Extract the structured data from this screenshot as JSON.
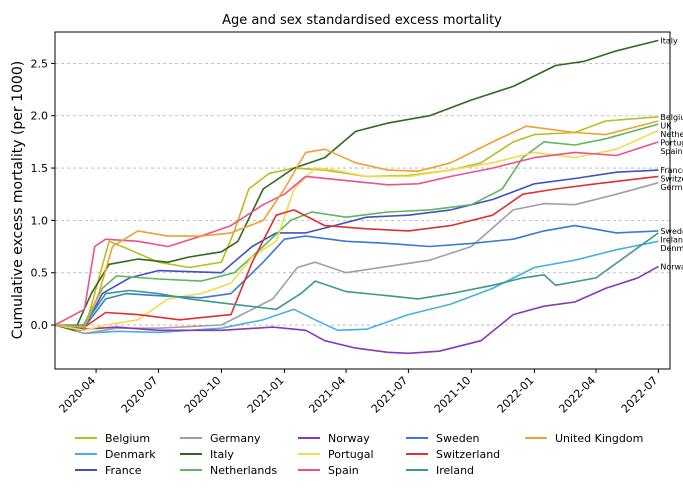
{
  "chart_data": {
    "type": "line",
    "title": "Age and sex standardised excess mortality",
    "xlabel": "",
    "ylabel": "Cumulative excess mortality (per 1000)",
    "ylim": [
      -0.42,
      2.8
    ],
    "xlim": [
      "2020-02-01",
      "2022-07-18"
    ],
    "yticks": [
      0.0,
      0.5,
      1.0,
      1.5,
      2.0,
      2.5
    ],
    "ytick_labels": [
      "0.0",
      "0.5",
      "1.0",
      "1.5",
      "2.0",
      "2.5"
    ],
    "xticks": [
      "2020-04-01",
      "2020-07-01",
      "2020-10-01",
      "2021-01-01",
      "2021-04-01",
      "2021-07-01",
      "2021-10-01",
      "2022-01-01",
      "2022-04-01",
      "2022-07-01"
    ],
    "xtick_labels": [
      "2020-04",
      "2020-07",
      "2020-10",
      "2021-01",
      "2021-04",
      "2021-07",
      "2021-10",
      "2022-01",
      "2022-04",
      "2022-07"
    ],
    "grid": "horizontal dashed",
    "legend": "bottom",
    "series": [
      {
        "name": "Belgium",
        "color": "#bcbd22",
        "end_label": "Belgium",
        "points": [
          [
            "2020-02-01",
            0
          ],
          [
            "2020-03-15",
            -0.05
          ],
          [
            "2020-04-01",
            0.35
          ],
          [
            "2020-04-20",
            0.8
          ],
          [
            "2020-05-20",
            0.72
          ],
          [
            "2020-07-01",
            0.6
          ],
          [
            "2020-08-15",
            0.55
          ],
          [
            "2020-10-01",
            0.6
          ],
          [
            "2020-10-20",
            0.9
          ],
          [
            "2020-11-10",
            1.3
          ],
          [
            "2020-12-10",
            1.45
          ],
          [
            "2021-01-15",
            1.5
          ],
          [
            "2021-03-01",
            1.48
          ],
          [
            "2021-05-01",
            1.42
          ],
          [
            "2021-07-01",
            1.43
          ],
          [
            "2021-09-01",
            1.48
          ],
          [
            "2021-10-15",
            1.55
          ],
          [
            "2021-12-01",
            1.75
          ],
          [
            "2022-01-01",
            1.82
          ],
          [
            "2022-03-01",
            1.84
          ],
          [
            "2022-04-15",
            1.95
          ],
          [
            "2022-07-01",
            1.99
          ]
        ]
      },
      {
        "name": "Denmark",
        "color": "#48b0e0",
        "end_label": "Denmark",
        "points": [
          [
            "2020-02-01",
            0
          ],
          [
            "2020-03-15",
            -0.08
          ],
          [
            "2020-05-01",
            -0.06
          ],
          [
            "2020-07-01",
            -0.07
          ],
          [
            "2020-10-01",
            -0.03
          ],
          [
            "2020-12-01",
            0.05
          ],
          [
            "2021-01-15",
            0.15
          ],
          [
            "2021-02-15",
            0.05
          ],
          [
            "2021-03-20",
            -0.05
          ],
          [
            "2021-05-01",
            -0.04
          ],
          [
            "2021-07-01",
            0.1
          ],
          [
            "2021-09-01",
            0.2
          ],
          [
            "2021-11-01",
            0.35
          ],
          [
            "2022-01-01",
            0.55
          ],
          [
            "2022-03-01",
            0.62
          ],
          [
            "2022-05-01",
            0.72
          ],
          [
            "2022-07-01",
            0.8
          ]
        ]
      },
      {
        "name": "France",
        "color": "#4050c0",
        "end_label": "France",
        "points": [
          [
            "2020-02-01",
            0
          ],
          [
            "2020-03-15",
            -0.02
          ],
          [
            "2020-04-10",
            0.3
          ],
          [
            "2020-05-20",
            0.45
          ],
          [
            "2020-07-01",
            0.52
          ],
          [
            "2020-10-01",
            0.5
          ],
          [
            "2020-11-15",
            0.75
          ],
          [
            "2020-12-20",
            0.88
          ],
          [
            "2021-02-01",
            0.88
          ],
          [
            "2021-03-15",
            0.95
          ],
          [
            "2021-05-01",
            1.03
          ],
          [
            "2021-07-01",
            1.05
          ],
          [
            "2021-09-01",
            1.1
          ],
          [
            "2021-11-01",
            1.2
          ],
          [
            "2022-01-01",
            1.35
          ],
          [
            "2022-03-01",
            1.4
          ],
          [
            "2022-05-01",
            1.46
          ],
          [
            "2022-07-01",
            1.48
          ]
        ]
      },
      {
        "name": "Germany",
        "color": "#a0a0a0",
        "end_label": "Germany",
        "points": [
          [
            "2020-02-01",
            0
          ],
          [
            "2020-03-15",
            -0.08
          ],
          [
            "2020-05-01",
            -0.03
          ],
          [
            "2020-07-01",
            -0.03
          ],
          [
            "2020-10-01",
            0.0
          ],
          [
            "2020-12-15",
            0.25
          ],
          [
            "2021-01-20",
            0.55
          ],
          [
            "2021-02-15",
            0.6
          ],
          [
            "2021-04-01",
            0.5
          ],
          [
            "2021-06-01",
            0.56
          ],
          [
            "2021-08-01",
            0.62
          ],
          [
            "2021-10-01",
            0.75
          ],
          [
            "2021-12-01",
            1.1
          ],
          [
            "2022-01-15",
            1.16
          ],
          [
            "2022-03-01",
            1.15
          ],
          [
            "2022-05-01",
            1.25
          ],
          [
            "2022-07-01",
            1.36
          ]
        ]
      },
      {
        "name": "Italy",
        "color": "#2d6a1e",
        "end_label": "Italy",
        "points": [
          [
            "2020-02-01",
            0
          ],
          [
            "2020-03-01",
            -0.05
          ],
          [
            "2020-03-25",
            0.3
          ],
          [
            "2020-04-20",
            0.58
          ],
          [
            "2020-06-01",
            0.63
          ],
          [
            "2020-07-15",
            0.6
          ],
          [
            "2020-08-15",
            0.65
          ],
          [
            "2020-10-01",
            0.7
          ],
          [
            "2020-10-25",
            0.8
          ],
          [
            "2020-12-01",
            1.3
          ],
          [
            "2021-01-15",
            1.5
          ],
          [
            "2021-03-01",
            1.6
          ],
          [
            "2021-04-15",
            1.85
          ],
          [
            "2021-06-01",
            1.93
          ],
          [
            "2021-08-01",
            2.0
          ],
          [
            "2021-10-01",
            2.15
          ],
          [
            "2021-12-01",
            2.28
          ],
          [
            "2022-01-01",
            2.38
          ],
          [
            "2022-02-01",
            2.48
          ],
          [
            "2022-03-15",
            2.52
          ],
          [
            "2022-05-01",
            2.62
          ],
          [
            "2022-07-01",
            2.72
          ]
        ]
      },
      {
        "name": "Netherlands",
        "color": "#5cb85c",
        "end_label": "Netherlands",
        "points": [
          [
            "2020-02-01",
            0
          ],
          [
            "2020-03-10",
            -0.05
          ],
          [
            "2020-04-10",
            0.35
          ],
          [
            "2020-05-01",
            0.47
          ],
          [
            "2020-07-01",
            0.44
          ],
          [
            "2020-09-01",
            0.42
          ],
          [
            "2020-10-20",
            0.5
          ],
          [
            "2020-12-01",
            0.75
          ],
          [
            "2021-01-10",
            1.0
          ],
          [
            "2021-02-10",
            1.08
          ],
          [
            "2021-04-01",
            1.03
          ],
          [
            "2021-06-01",
            1.08
          ],
          [
            "2021-08-01",
            1.1
          ],
          [
            "2021-10-01",
            1.15
          ],
          [
            "2021-11-15",
            1.3
          ],
          [
            "2021-12-15",
            1.6
          ],
          [
            "2022-01-15",
            1.75
          ],
          [
            "2022-03-01",
            1.72
          ],
          [
            "2022-04-15",
            1.78
          ],
          [
            "2022-07-01",
            1.92
          ]
        ]
      },
      {
        "name": "Norway",
        "color": "#8d35b8",
        "end_label": "Norway",
        "points": [
          [
            "2020-02-01",
            0
          ],
          [
            "2020-03-15",
            -0.04
          ],
          [
            "2020-05-01",
            -0.02
          ],
          [
            "2020-07-01",
            -0.05
          ],
          [
            "2020-10-01",
            -0.05
          ],
          [
            "2020-12-15",
            -0.02
          ],
          [
            "2021-02-01",
            -0.05
          ],
          [
            "2021-03-01",
            -0.15
          ],
          [
            "2021-04-15",
            -0.22
          ],
          [
            "2021-06-01",
            -0.26
          ],
          [
            "2021-07-01",
            -0.27
          ],
          [
            "2021-08-15",
            -0.25
          ],
          [
            "2021-10-15",
            -0.15
          ],
          [
            "2021-12-01",
            0.1
          ],
          [
            "2022-01-15",
            0.18
          ],
          [
            "2022-03-01",
            0.22
          ],
          [
            "2022-04-15",
            0.35
          ],
          [
            "2022-06-01",
            0.45
          ],
          [
            "2022-07-01",
            0.56
          ]
        ]
      },
      {
        "name": "Portugal",
        "color": "#f0dc50",
        "end_label": "Portugal",
        "points": [
          [
            "2020-02-01",
            0
          ],
          [
            "2020-03-15",
            -0.05
          ],
          [
            "2020-04-15",
            0.0
          ],
          [
            "2020-06-01",
            0.05
          ],
          [
            "2020-07-15",
            0.25
          ],
          [
            "2020-09-01",
            0.3
          ],
          [
            "2020-10-15",
            0.4
          ],
          [
            "2020-11-15",
            0.65
          ],
          [
            "2020-12-20",
            0.8
          ],
          [
            "2021-01-15",
            1.3
          ],
          [
            "2021-02-15",
            1.5
          ],
          [
            "2021-03-15",
            1.48
          ],
          [
            "2021-05-01",
            1.42
          ],
          [
            "2021-07-01",
            1.42
          ],
          [
            "2021-09-01",
            1.48
          ],
          [
            "2021-11-01",
            1.55
          ],
          [
            "2022-01-01",
            1.65
          ],
          [
            "2022-03-01",
            1.6
          ],
          [
            "2022-05-01",
            1.68
          ],
          [
            "2022-07-01",
            1.86
          ]
        ]
      },
      {
        "name": "Spain",
        "color": "#f0508a",
        "end_label": "Spain",
        "points": [
          [
            "2020-02-01",
            0
          ],
          [
            "2020-03-15",
            0.15
          ],
          [
            "2020-03-30",
            0.75
          ],
          [
            "2020-04-15",
            0.82
          ],
          [
            "2020-06-01",
            0.8
          ],
          [
            "2020-07-15",
            0.75
          ],
          [
            "2020-09-01",
            0.85
          ],
          [
            "2020-10-15",
            0.95
          ],
          [
            "2020-12-01",
            1.15
          ],
          [
            "2021-01-01",
            1.25
          ],
          [
            "2021-02-01",
            1.42
          ],
          [
            "2021-04-01",
            1.38
          ],
          [
            "2021-06-01",
            1.34
          ],
          [
            "2021-07-15",
            1.35
          ],
          [
            "2021-09-01",
            1.42
          ],
          [
            "2021-11-01",
            1.5
          ],
          [
            "2022-01-01",
            1.6
          ],
          [
            "2022-03-01",
            1.65
          ],
          [
            "2022-05-01",
            1.62
          ],
          [
            "2022-07-01",
            1.75
          ]
        ]
      },
      {
        "name": "Sweden",
        "color": "#3a7ad0",
        "end_label": "Sweden",
        "points": [
          [
            "2020-02-01",
            0
          ],
          [
            "2020-03-15",
            -0.02
          ],
          [
            "2020-04-15",
            0.25
          ],
          [
            "2020-05-15",
            0.3
          ],
          [
            "2020-07-01",
            0.28
          ],
          [
            "2020-09-01",
            0.26
          ],
          [
            "2020-10-15",
            0.3
          ],
          [
            "2020-12-01",
            0.6
          ],
          [
            "2021-01-01",
            0.82
          ],
          [
            "2021-02-01",
            0.85
          ],
          [
            "2021-04-01",
            0.8
          ],
          [
            "2021-06-01",
            0.78
          ],
          [
            "2021-08-01",
            0.75
          ],
          [
            "2021-10-01",
            0.78
          ],
          [
            "2021-12-01",
            0.82
          ],
          [
            "2022-01-15",
            0.9
          ],
          [
            "2022-03-01",
            0.95
          ],
          [
            "2022-05-01",
            0.88
          ],
          [
            "2022-07-01",
            0.9
          ]
        ]
      },
      {
        "name": "Switzerland",
        "color": "#e03030",
        "end_label": "Switzerland",
        "points": [
          [
            "2020-02-01",
            0
          ],
          [
            "2020-03-15",
            -0.02
          ],
          [
            "2020-04-15",
            0.12
          ],
          [
            "2020-06-01",
            0.1
          ],
          [
            "2020-08-01",
            0.05
          ],
          [
            "2020-10-15",
            0.1
          ],
          [
            "2020-11-15",
            0.6
          ],
          [
            "2020-12-20",
            1.05
          ],
          [
            "2021-01-15",
            1.1
          ],
          [
            "2021-03-01",
            0.95
          ],
          [
            "2021-05-01",
            0.92
          ],
          [
            "2021-07-01",
            0.9
          ],
          [
            "2021-09-01",
            0.95
          ],
          [
            "2021-11-01",
            1.05
          ],
          [
            "2021-12-15",
            1.25
          ],
          [
            "2022-02-01",
            1.3
          ],
          [
            "2022-04-01",
            1.35
          ],
          [
            "2022-07-01",
            1.42
          ]
        ]
      },
      {
        "name": "Ireland",
        "color": "#3a9a8c",
        "end_label": "Ireland",
        "points": [
          [
            "2020-02-01",
            0
          ],
          [
            "2020-03-15",
            0.0
          ],
          [
            "2020-04-15",
            0.3
          ],
          [
            "2020-05-20",
            0.33
          ],
          [
            "2020-07-01",
            0.3
          ],
          [
            "2020-08-15",
            0.25
          ],
          [
            "2020-10-15",
            0.2
          ],
          [
            "2020-12-20",
            0.15
          ],
          [
            "2021-01-25",
            0.3
          ],
          [
            "2021-02-15",
            0.42
          ],
          [
            "2021-04-01",
            0.32
          ],
          [
            "2021-06-01",
            0.28
          ],
          [
            "2021-07-15",
            0.25
          ],
          [
            "2021-09-01",
            0.3
          ],
          [
            "2021-11-01",
            0.38
          ],
          [
            "2021-12-15",
            0.45
          ],
          [
            "2022-01-15",
            0.48
          ],
          [
            "2022-02-01",
            0.38
          ],
          [
            "2022-04-01",
            0.45
          ],
          [
            "2022-07-01",
            0.88
          ]
        ]
      },
      {
        "name": "United Kingdom",
        "color": "#f0a030",
        "end_label": "UK",
        "points": [
          [
            "2020-02-01",
            0
          ],
          [
            "2020-03-15",
            -0.02
          ],
          [
            "2020-04-05",
            0.3
          ],
          [
            "2020-04-25",
            0.75
          ],
          [
            "2020-06-01",
            0.9
          ],
          [
            "2020-07-15",
            0.85
          ],
          [
            "2020-09-01",
            0.85
          ],
          [
            "2020-10-15",
            0.88
          ],
          [
            "2020-12-01",
            1.0
          ],
          [
            "2021-01-01",
            1.3
          ],
          [
            "2021-02-01",
            1.65
          ],
          [
            "2021-03-01",
            1.68
          ],
          [
            "2021-04-15",
            1.55
          ],
          [
            "2021-06-01",
            1.48
          ],
          [
            "2021-07-15",
            1.47
          ],
          [
            "2021-09-01",
            1.55
          ],
          [
            "2021-11-01",
            1.75
          ],
          [
            "2021-12-20",
            1.9
          ],
          [
            "2022-03-01",
            1.84
          ],
          [
            "2022-04-15",
            1.82
          ],
          [
            "2022-07-01",
            1.95
          ]
        ]
      }
    ]
  }
}
